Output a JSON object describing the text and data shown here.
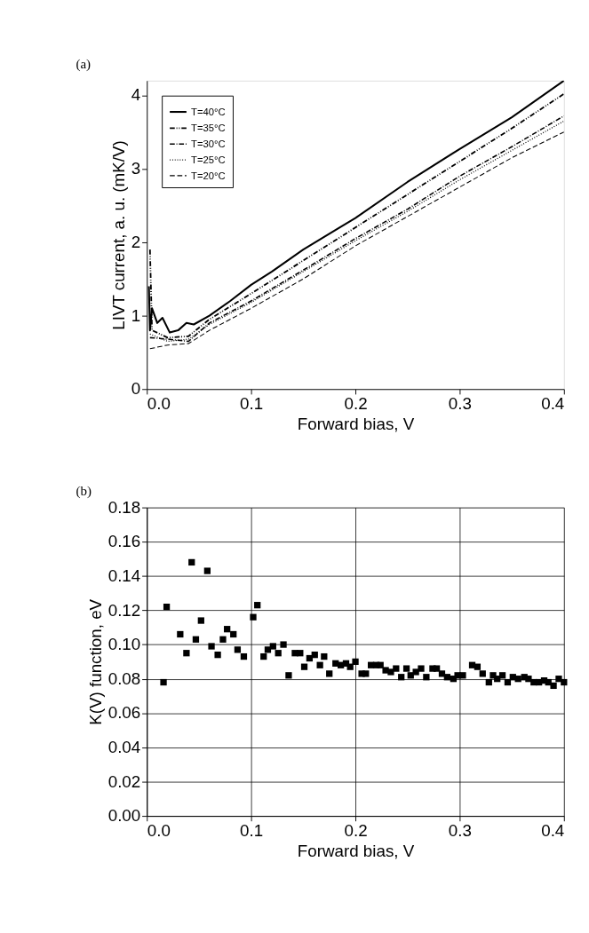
{
  "chart_data": [
    {
      "type": "line",
      "annotations": [
        "(a)"
      ],
      "xlabel": "Forward bias, V",
      "ylabel": "LIVT current, a. u. (mK/V)",
      "xlim": [
        0,
        0.4
      ],
      "ylim": [
        0,
        4.2
      ],
      "xticks": [
        {
          "value": 0,
          "label": "0.0"
        },
        0.1,
        0.2,
        0.3,
        0.4
      ],
      "yticks": [
        0,
        1,
        2,
        3,
        4
      ],
      "grid": false,
      "legend": "top left",
      "series": [
        {
          "name": "T=40°C",
          "color": "#000000",
          "line_style": "solid",
          "x": [
            0.002,
            0.003,
            0.005,
            0.01,
            0.015,
            0.022,
            0.03,
            0.038,
            0.045,
            0.06,
            0.08,
            0.1,
            0.12,
            0.15,
            0.2,
            0.25,
            0.3,
            0.35,
            0.4
          ],
          "values": [
            1.4,
            0.8,
            1.1,
            0.9,
            0.97,
            0.77,
            0.8,
            0.9,
            0.88,
            1.0,
            1.2,
            1.42,
            1.6,
            1.9,
            2.33,
            2.82,
            3.27,
            3.7,
            4.2
          ]
        },
        {
          "name": "T=35°C",
          "color": "#000000",
          "line_style": "dashdotdot",
          "x": [
            0.003,
            0.005,
            0.02,
            0.04,
            0.06,
            0.1,
            0.15,
            0.2,
            0.25,
            0.3,
            0.35,
            0.4
          ],
          "values": [
            1.9,
            0.8,
            0.7,
            0.72,
            0.95,
            1.3,
            1.75,
            2.2,
            2.65,
            3.1,
            3.55,
            4.02
          ]
        },
        {
          "name": "T=30°C",
          "color": "#000000",
          "line_style": "dashdot",
          "x": [
            0.003,
            0.02,
            0.04,
            0.06,
            0.1,
            0.15,
            0.2,
            0.25,
            0.3,
            0.35,
            0.4
          ],
          "values": [
            0.7,
            0.68,
            0.65,
            0.9,
            1.2,
            1.62,
            2.05,
            2.45,
            2.9,
            3.3,
            3.72
          ]
        },
        {
          "name": "T=25°C",
          "color": "#000000",
          "line_style": "dotted",
          "x": [
            0.003,
            0.02,
            0.04,
            0.06,
            0.1,
            0.15,
            0.2,
            0.25,
            0.3,
            0.35,
            0.4
          ],
          "values": [
            0.75,
            0.65,
            0.68,
            0.88,
            1.18,
            1.6,
            2.02,
            2.42,
            2.85,
            3.25,
            3.65
          ]
        },
        {
          "name": "T=20°C",
          "color": "#000000",
          "line_style": "dashed",
          "x": [
            0.003,
            0.02,
            0.04,
            0.06,
            0.1,
            0.15,
            0.2,
            0.25,
            0.3,
            0.35,
            0.4
          ],
          "values": [
            0.55,
            0.6,
            0.62,
            0.8,
            1.1,
            1.5,
            1.95,
            2.35,
            2.75,
            3.15,
            3.5
          ]
        }
      ]
    },
    {
      "type": "scatter",
      "annotations": [
        "(b)"
      ],
      "xlabel": "Forward bias, V",
      "ylabel": "K(V) function, eV",
      "xlim": [
        0,
        0.4
      ],
      "ylim": [
        0,
        0.18
      ],
      "xticks": [
        {
          "value": 0,
          "label": "0.0"
        },
        0.1,
        0.2,
        0.3,
        0.4
      ],
      "yticks": [
        {
          "value": 0,
          "label": "0.00"
        },
        0.02,
        0.04,
        0.06,
        0.08,
        {
          "value": 0.1,
          "label": "0.10"
        },
        0.12,
        0.14,
        0.16,
        0.18
      ],
      "grid": true,
      "legend": false,
      "marker": "square",
      "series": [
        {
          "color": "#000000",
          "x": [
            0.016,
            0.019,
            0.032,
            0.038,
            0.043,
            0.047,
            0.052,
            0.058,
            0.062,
            0.068,
            0.073,
            0.077,
            0.083,
            0.087,
            0.093,
            0.102,
            0.106,
            0.112,
            0.116,
            0.121,
            0.126,
            0.131,
            0.136,
            0.142,
            0.147,
            0.151,
            0.156,
            0.161,
            0.166,
            0.17,
            0.175,
            0.181,
            0.186,
            0.191,
            0.195,
            0.2,
            0.206,
            0.21,
            0.215,
            0.22,
            0.224,
            0.229,
            0.234,
            0.239,
            0.244,
            0.249,
            0.253,
            0.258,
            0.263,
            0.268,
            0.274,
            0.278,
            0.283,
            0.288,
            0.294,
            0.298,
            0.303,
            0.312,
            0.317,
            0.322,
            0.328,
            0.332,
            0.336,
            0.341,
            0.346,
            0.351,
            0.356,
            0.362,
            0.366,
            0.371,
            0.376,
            0.381,
            0.385,
            0.39,
            0.395,
            0.4
          ],
          "values": [
            0.078,
            0.122,
            0.106,
            0.095,
            0.148,
            0.103,
            0.114,
            0.143,
            0.099,
            0.094,
            0.103,
            0.109,
            0.106,
            0.097,
            0.093,
            0.116,
            0.123,
            0.093,
            0.097,
            0.099,
            0.095,
            0.1,
            0.082,
            0.095,
            0.095,
            0.087,
            0.092,
            0.094,
            0.088,
            0.093,
            0.083,
            0.089,
            0.088,
            0.089,
            0.087,
            0.09,
            0.083,
            0.083,
            0.088,
            0.088,
            0.088,
            0.085,
            0.084,
            0.086,
            0.081,
            0.086,
            0.082,
            0.084,
            0.086,
            0.081,
            0.086,
            0.086,
            0.083,
            0.081,
            0.08,
            0.082,
            0.082,
            0.088,
            0.087,
            0.083,
            0.078,
            0.082,
            0.08,
            0.082,
            0.078,
            0.081,
            0.08,
            0.081,
            0.08,
            0.078,
            0.078,
            0.079,
            0.078,
            0.076,
            0.08,
            0.078
          ]
        }
      ]
    }
  ]
}
